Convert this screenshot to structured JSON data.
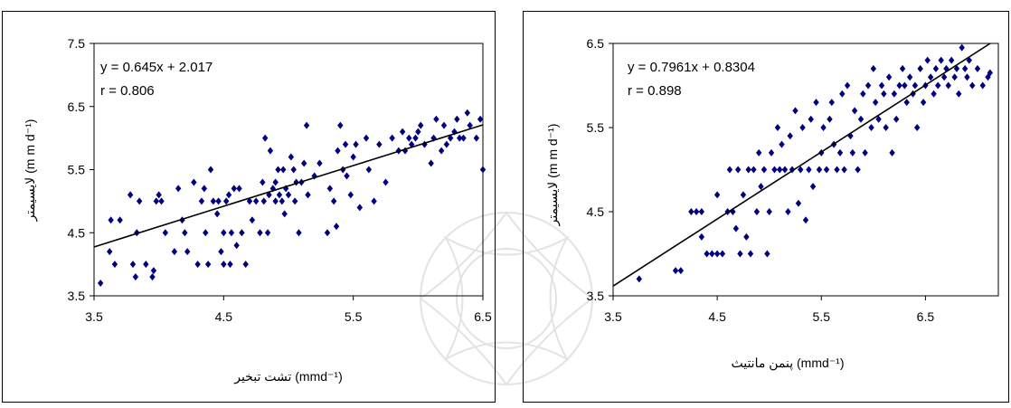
{
  "colors": {
    "points": "#000080",
    "line": "#000000",
    "frame": "#000000",
    "watermark": "#d8d8d8"
  },
  "chart_data": [
    {
      "type": "scatter",
      "xlabel": "تشت تبخیر (mmd⁻¹)",
      "ylabel": "لایسیمتر (m m d⁻¹)",
      "xlim": [
        3.5,
        6.5
      ],
      "ylim": [
        3.5,
        7.5
      ],
      "xticks": [
        "3.5",
        "4.5",
        "5.5",
        "6.5"
      ],
      "yticks": [
        "3.5",
        "4.5",
        "5.5",
        "6.5",
        "7.5"
      ],
      "grid": false,
      "regression": {
        "slope": 0.645,
        "intercept": 2.017,
        "equation": "y = 0.645x + 2.017",
        "r": "r = 0.806"
      },
      "points": [
        [
          3.55,
          3.7
        ],
        [
          3.62,
          4.2
        ],
        [
          3.63,
          4.7
        ],
        [
          3.66,
          4.0
        ],
        [
          3.7,
          4.7
        ],
        [
          3.78,
          5.1
        ],
        [
          3.8,
          4.0
        ],
        [
          3.82,
          3.8
        ],
        [
          3.83,
          4.5
        ],
        [
          3.85,
          5.0
        ],
        [
          3.9,
          4.0
        ],
        [
          3.95,
          3.8
        ],
        [
          3.96,
          3.9
        ],
        [
          3.98,
          5.0
        ],
        [
          4.0,
          5.1
        ],
        [
          4.02,
          5.0
        ],
        [
          4.05,
          4.5
        ],
        [
          4.12,
          4.2
        ],
        [
          4.15,
          5.2
        ],
        [
          4.18,
          4.7
        ],
        [
          4.2,
          4.5
        ],
        [
          4.22,
          4.2
        ],
        [
          4.27,
          5.3
        ],
        [
          4.3,
          4.0
        ],
        [
          4.33,
          5.0
        ],
        [
          4.35,
          5.2
        ],
        [
          4.36,
          4.5
        ],
        [
          4.38,
          4.0
        ],
        [
          4.4,
          5.5
        ],
        [
          4.42,
          5.0
        ],
        [
          4.45,
          4.8
        ],
        [
          4.46,
          5.0
        ],
        [
          4.48,
          4.2
        ],
        [
          4.5,
          4.0
        ],
        [
          4.5,
          4.5
        ],
        [
          4.52,
          5.0
        ],
        [
          4.54,
          5.1
        ],
        [
          4.55,
          4.0
        ],
        [
          4.56,
          4.5
        ],
        [
          4.58,
          5.2
        ],
        [
          4.6,
          4.3
        ],
        [
          4.62,
          5.2
        ],
        [
          4.64,
          4.5
        ],
        [
          4.67,
          4.0
        ],
        [
          4.7,
          5.0
        ],
        [
          4.72,
          4.7
        ],
        [
          4.75,
          5.0
        ],
        [
          4.78,
          4.5
        ],
        [
          4.8,
          5.3
        ],
        [
          4.81,
          5.0
        ],
        [
          4.82,
          6.0
        ],
        [
          4.84,
          4.5
        ],
        [
          4.85,
          5.1
        ],
        [
          4.86,
          5.8
        ],
        [
          4.88,
          5.2
        ],
        [
          4.9,
          5.0
        ],
        [
          4.9,
          5.3
        ],
        [
          4.92,
          5.5
        ],
        [
          4.93,
          5.1
        ],
        [
          4.95,
          5.0
        ],
        [
          4.96,
          5.5
        ],
        [
          4.97,
          4.8
        ],
        [
          4.98,
          5.2
        ],
        [
          5.0,
          5.1
        ],
        [
          5.02,
          5.7
        ],
        [
          5.04,
          5.5
        ],
        [
          5.05,
          5.0
        ],
        [
          5.06,
          5.3
        ],
        [
          5.08,
          4.5
        ],
        [
          5.1,
          5.3
        ],
        [
          5.12,
          5.6
        ],
        [
          5.14,
          6.2
        ],
        [
          5.15,
          5.1
        ],
        [
          5.2,
          5.4
        ],
        [
          5.24,
          5.6
        ],
        [
          5.3,
          4.5
        ],
        [
          5.32,
          5.2
        ],
        [
          5.35,
          5.0
        ],
        [
          5.37,
          4.6
        ],
        [
          5.38,
          5.8
        ],
        [
          5.4,
          6.2
        ],
        [
          5.42,
          5.5
        ],
        [
          5.44,
          5.9
        ],
        [
          5.45,
          5.4
        ],
        [
          5.48,
          5.1
        ],
        [
          5.5,
          5.7
        ],
        [
          5.52,
          5.9
        ],
        [
          5.55,
          4.9
        ],
        [
          5.6,
          6.0
        ],
        [
          5.62,
          5.5
        ],
        [
          5.66,
          5.0
        ],
        [
          5.7,
          5.9
        ],
        [
          5.75,
          5.3
        ],
        [
          5.8,
          6.0
        ],
        [
          5.85,
          5.8
        ],
        [
          5.88,
          6.1
        ],
        [
          5.9,
          5.8
        ],
        [
          5.93,
          6.0
        ],
        [
          5.95,
          5.9
        ],
        [
          5.98,
          6.0
        ],
        [
          6.0,
          6.1
        ],
        [
          6.02,
          6.2
        ],
        [
          6.05,
          5.9
        ],
        [
          6.1,
          5.6
        ],
        [
          6.12,
          6.0
        ],
        [
          6.14,
          6.3
        ],
        [
          6.18,
          5.8
        ],
        [
          6.2,
          6.2
        ],
        [
          6.22,
          5.9
        ],
        [
          6.25,
          6.0
        ],
        [
          6.28,
          6.1
        ],
        [
          6.3,
          6.3
        ],
        [
          6.32,
          6.0
        ],
        [
          6.35,
          6.0
        ],
        [
          6.38,
          6.4
        ],
        [
          6.4,
          6.2
        ],
        [
          6.45,
          6.0
        ],
        [
          6.48,
          6.3
        ],
        [
          6.5,
          5.5
        ]
      ]
    },
    {
      "type": "scatter",
      "xlabel": "پنمن مانتیث (mmd⁻¹)",
      "ylabel": "لایسیمتر (m m d⁻¹)",
      "xlim": [
        3.5,
        7.2
      ],
      "ylim": [
        3.5,
        6.5
      ],
      "xticks": [
        "3.5",
        "4.5",
        "5.5",
        "6.5"
      ],
      "yticks": [
        "3.5",
        "4.5",
        "5.5",
        "6.5"
      ],
      "grid": false,
      "regression": {
        "slope": 0.7961,
        "intercept": 0.8304,
        "equation": "y = 0.7961x + 0.8304",
        "r": "r = 0.898"
      },
      "points": [
        [
          3.75,
          3.7
        ],
        [
          4.1,
          3.8
        ],
        [
          4.15,
          3.8
        ],
        [
          4.25,
          4.5
        ],
        [
          4.3,
          4.5
        ],
        [
          4.35,
          4.2
        ],
        [
          4.35,
          4.5
        ],
        [
          4.4,
          4.0
        ],
        [
          4.45,
          4.0
        ],
        [
          4.5,
          4.0
        ],
        [
          4.5,
          4.7
        ],
        [
          4.55,
          4.0
        ],
        [
          4.6,
          4.5
        ],
        [
          4.62,
          5.0
        ],
        [
          4.65,
          4.5
        ],
        [
          4.68,
          4.3
        ],
        [
          4.7,
          5.0
        ],
        [
          4.72,
          4.0
        ],
        [
          4.75,
          4.7
        ],
        [
          4.78,
          4.2
        ],
        [
          4.8,
          5.0
        ],
        [
          4.82,
          4.0
        ],
        [
          4.85,
          5.0
        ],
        [
          4.88,
          4.5
        ],
        [
          4.9,
          5.2
        ],
        [
          4.92,
          4.8
        ],
        [
          4.95,
          5.0
        ],
        [
          4.98,
          4.0
        ],
        [
          5.0,
          4.5
        ],
        [
          5.02,
          5.2
        ],
        [
          5.05,
          5.0
        ],
        [
          5.08,
          5.5
        ],
        [
          5.1,
          5.0
        ],
        [
          5.12,
          5.3
        ],
        [
          5.15,
          5.0
        ],
        [
          5.18,
          4.5
        ],
        [
          5.2,
          5.4
        ],
        [
          5.22,
          5.0
        ],
        [
          5.25,
          5.7
        ],
        [
          5.28,
          4.6
        ],
        [
          5.3,
          5.0
        ],
        [
          5.32,
          5.5
        ],
        [
          5.35,
          4.4
        ],
        [
          5.38,
          5.0
        ],
        [
          5.4,
          5.6
        ],
        [
          5.42,
          4.8
        ],
        [
          5.45,
          5.8
        ],
        [
          5.48,
          5.0
        ],
        [
          5.5,
          5.2
        ],
        [
          5.52,
          5.5
        ],
        [
          5.55,
          5.0
        ],
        [
          5.58,
          5.6
        ],
        [
          5.6,
          5.8
        ],
        [
          5.62,
          5.3
        ],
        [
          5.65,
          5.0
        ],
        [
          5.68,
          5.2
        ],
        [
          5.7,
          5.9
        ],
        [
          5.72,
          5.0
        ],
        [
          5.75,
          6.0
        ],
        [
          5.78,
          5.4
        ],
        [
          5.8,
          5.2
        ],
        [
          5.82,
          5.7
        ],
        [
          5.85,
          5.0
        ],
        [
          5.88,
          5.6
        ],
        [
          5.9,
          5.9
        ],
        [
          5.92,
          5.2
        ],
        [
          5.95,
          6.0
        ],
        [
          5.98,
          5.5
        ],
        [
          6.0,
          6.2
        ],
        [
          6.02,
          5.8
        ],
        [
          6.05,
          5.6
        ],
        [
          6.08,
          6.0
        ],
        [
          6.1,
          5.9
        ],
        [
          6.12,
          5.5
        ],
        [
          6.15,
          6.1
        ],
        [
          6.18,
          5.2
        ],
        [
          6.2,
          5.9
        ],
        [
          6.22,
          5.6
        ],
        [
          6.25,
          6.0
        ],
        [
          6.28,
          6.2
        ],
        [
          6.3,
          6.0
        ],
        [
          6.32,
          5.8
        ],
        [
          6.35,
          6.1
        ],
        [
          6.38,
          5.9
        ],
        [
          6.4,
          6.0
        ],
        [
          6.42,
          5.5
        ],
        [
          6.45,
          6.2
        ],
        [
          6.48,
          5.8
        ],
        [
          6.5,
          6.0
        ],
        [
          6.52,
          6.3
        ],
        [
          6.55,
          6.1
        ],
        [
          6.58,
          5.9
        ],
        [
          6.6,
          6.2
        ],
        [
          6.62,
          6.0
        ],
        [
          6.65,
          6.3
        ],
        [
          6.68,
          6.1
        ],
        [
          6.7,
          6.2
        ],
        [
          6.72,
          6.0
        ],
        [
          6.75,
          6.3
        ],
        [
          6.78,
          6.1
        ],
        [
          6.8,
          6.2
        ],
        [
          6.82,
          5.9
        ],
        [
          6.85,
          6.45
        ],
        [
          6.88,
          6.2
        ],
        [
          6.9,
          6.1
        ],
        [
          6.92,
          6.3
        ],
        [
          6.95,
          6.0
        ],
        [
          7.0,
          6.2
        ],
        [
          7.05,
          6.0
        ],
        [
          7.1,
          6.1
        ],
        [
          7.12,
          6.15
        ]
      ]
    }
  ]
}
